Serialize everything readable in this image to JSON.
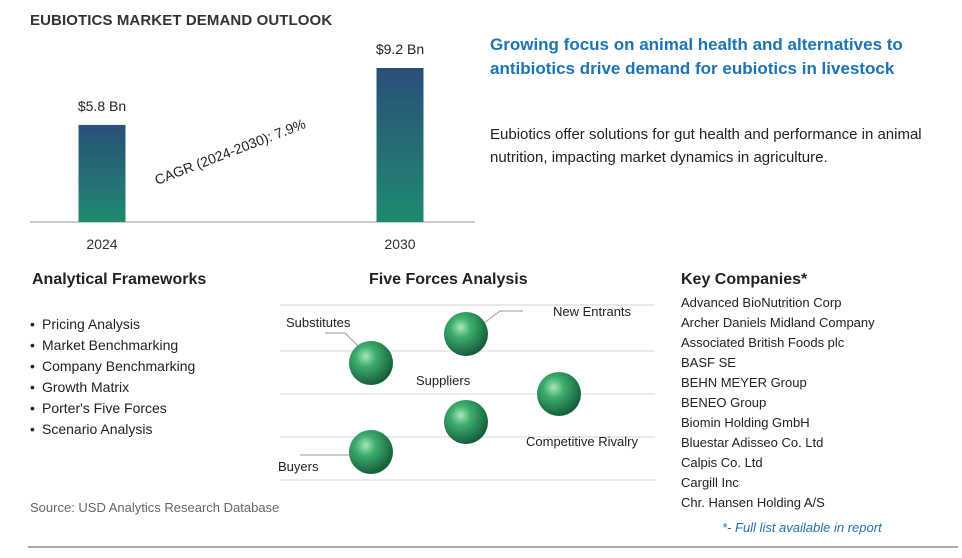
{
  "title": "EUBIOTICS MARKET DEMAND OUTLOOK",
  "chart_data": {
    "type": "bar",
    "categories": [
      "2024",
      "2030"
    ],
    "values": [
      5.8,
      9.2
    ],
    "data_labels": [
      "$5.8 Bn",
      "$9.2 Bn"
    ],
    "ylim": [
      0,
      9.2
    ],
    "annotation": "CAGR (2024-2030):  7.9%",
    "grid": false,
    "colors": {
      "bar_top": "#2a4f7a",
      "bar_bottom": "#1f8a6e"
    }
  },
  "headline": "Growing focus on animal health and alternatives to antibiotics drive demand for eubiotics in livestock",
  "description": "Eubiotics offer solutions for gut health and performance in animal nutrition, impacting market dynamics in agriculture.",
  "frameworks": {
    "heading": "Analytical Frameworks",
    "items": [
      "Pricing Analysis",
      "Market Benchmarking",
      "Company Benchmarking",
      "Growth Matrix",
      "Porter's Five Forces",
      "Scenario Analysis"
    ]
  },
  "five_forces": {
    "heading": "Five Forces Analysis",
    "labels": {
      "substitutes": "Substitutes",
      "new_entrants": "New Entrants",
      "suppliers": "Suppliers",
      "competitive_rivalry": "Competitive Rivalry",
      "buyers": "Buyers"
    }
  },
  "companies": {
    "heading": "Key Companies*",
    "items": [
      "Advanced BioNutrition Corp",
      "Archer Daniels Midland Company",
      "Associated British Foods plc",
      "BASF SE",
      "BEHN MEYER Group",
      "BENEO Group",
      "Biomin Holding GmbH",
      "Bluestar Adisseo Co. Ltd",
      "Calpis Co. Ltd",
      "Cargill Inc",
      "Chr. Hansen Holding A/S"
    ],
    "note": "*- Full list available in report"
  },
  "source": "Source: USD Analytics Research Database"
}
